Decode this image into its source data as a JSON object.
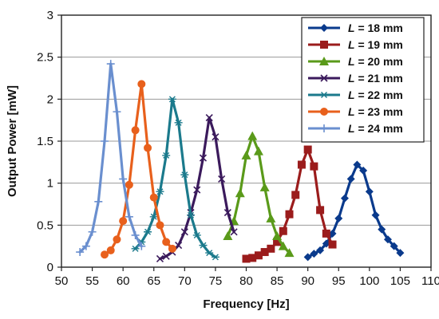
{
  "chart_data": {
    "type": "line",
    "title": "",
    "xlabel": "Frequency [Hz]",
    "ylabel": "Output Power [mW]",
    "xlim": [
      50,
      110
    ],
    "ylim": [
      0,
      3
    ],
    "x_ticks": [
      "50",
      "55",
      "60",
      "65",
      "70",
      "75",
      "80",
      "85",
      "90",
      "95",
      "100",
      "105",
      "110"
    ],
    "y_ticks": [
      "0",
      "0.5",
      "1",
      "1.5",
      "2",
      "2.5",
      "3"
    ],
    "grid": "horizontal",
    "legend_position": "top-right",
    "series": [
      {
        "name": "L = 18 mm",
        "legend_prefix": "L",
        "legend_suffix": " = 18 mm",
        "color": "#0a3a8c",
        "marker": "diamond",
        "x": [
          90,
          91,
          92,
          93,
          94,
          95,
          96,
          97,
          98,
          99,
          100,
          101,
          102,
          103,
          104,
          105
        ],
        "y": [
          0.12,
          0.16,
          0.2,
          0.28,
          0.4,
          0.58,
          0.82,
          1.05,
          1.22,
          1.15,
          0.9,
          0.62,
          0.45,
          0.33,
          0.25,
          0.17
        ]
      },
      {
        "name": "L = 19 mm",
        "legend_prefix": "L",
        "legend_suffix": " = 19 mm",
        "color": "#9b1c1c",
        "marker": "square",
        "x": [
          80,
          81,
          82,
          83,
          84,
          85,
          86,
          87,
          88,
          89,
          90,
          91,
          92,
          93,
          94
        ],
        "y": [
          0.1,
          0.11,
          0.14,
          0.18,
          0.22,
          0.3,
          0.43,
          0.63,
          0.86,
          1.22,
          1.4,
          1.2,
          0.68,
          0.4,
          0.27
        ]
      },
      {
        "name": "L = 20 mm",
        "legend_prefix": "L",
        "legend_suffix": " = 20 mm",
        "color": "#5a9a1a",
        "marker": "triangle",
        "x": [
          77,
          78,
          79,
          80,
          81,
          82,
          83,
          84,
          85,
          86,
          87
        ],
        "y": [
          0.37,
          0.55,
          0.88,
          1.33,
          1.56,
          1.38,
          0.95,
          0.58,
          0.37,
          0.25,
          0.17
        ]
      },
      {
        "name": "L = 21 mm",
        "legend_prefix": "L",
        "legend_suffix": " = 21 mm",
        "color": "#3b1a5c",
        "marker": "x",
        "x": [
          66,
          67,
          68,
          69,
          70,
          71,
          72,
          73,
          74,
          75,
          76,
          77,
          78
        ],
        "y": [
          0.1,
          0.13,
          0.18,
          0.26,
          0.42,
          0.65,
          0.92,
          1.3,
          1.78,
          1.55,
          1.05,
          0.65,
          0.42
        ]
      },
      {
        "name": "L = 22 mm",
        "legend_prefix": "L",
        "legend_suffix": " = 22 mm",
        "color": "#1b7a8c",
        "marker": "star",
        "x": [
          62,
          63,
          64,
          65,
          66,
          67,
          68,
          69,
          70,
          71,
          72,
          73,
          74,
          75
        ],
        "y": [
          0.22,
          0.3,
          0.42,
          0.6,
          0.9,
          1.33,
          2.0,
          1.72,
          1.1,
          0.62,
          0.38,
          0.26,
          0.17,
          0.12
        ]
      },
      {
        "name": "L = 23 mm",
        "legend_prefix": "L",
        "legend_suffix": " = 23 mm",
        "color": "#e8601c",
        "marker": "circle",
        "x": [
          57,
          58,
          59,
          60,
          61,
          62,
          63,
          64,
          65,
          66,
          67,
          68
        ],
        "y": [
          0.15,
          0.2,
          0.33,
          0.55,
          0.98,
          1.63,
          2.18,
          1.42,
          0.83,
          0.5,
          0.3,
          0.22
        ]
      },
      {
        "name": "L = 24 mm",
        "legend_prefix": "L",
        "legend_suffix": " = 24 mm",
        "color": "#6a8fcf",
        "marker": "plus",
        "x": [
          53,
          54,
          55,
          56,
          57,
          58,
          59,
          60,
          61,
          62,
          63
        ],
        "y": [
          0.18,
          0.25,
          0.42,
          0.78,
          1.5,
          2.42,
          1.85,
          1.05,
          0.6,
          0.38,
          0.25
        ]
      }
    ]
  }
}
